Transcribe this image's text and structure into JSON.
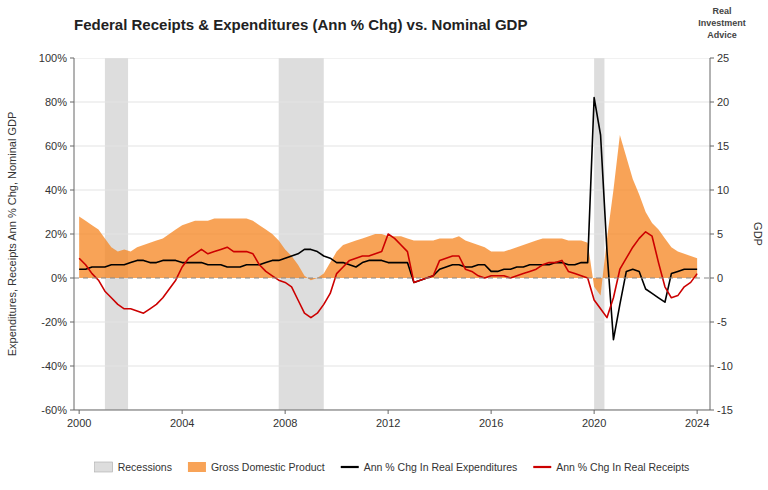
{
  "chart_data": {
    "type": "line",
    "title": "Federal Receipts & Expenditures (Ann % Chg) vs. Nominal GDP",
    "y_label": "Expenditures, Receipts Ann % Chg, Nominal GDP",
    "y2_label": "GDP",
    "annotation": "Real\nInvestment\nAdvice",
    "xlim": [
      1999.8,
      2024.5
    ],
    "xticks": [
      2000,
      2004,
      2008,
      2012,
      2016,
      2020,
      2024
    ],
    "ylim": [
      -0.6,
      1.0
    ],
    "yticks": [
      {
        "value": -0.6,
        "label": "-60%"
      },
      {
        "value": -0.4,
        "label": "-40%"
      },
      {
        "value": -0.2,
        "label": "-20%"
      },
      {
        "value": 0.0,
        "label": "0%"
      },
      {
        "value": 0.2,
        "label": "20%"
      },
      {
        "value": 0.4,
        "label": "40%"
      },
      {
        "value": 0.6,
        "label": "60%"
      },
      {
        "value": 0.8,
        "label": "80%"
      },
      {
        "value": 1.0,
        "label": "100%"
      }
    ],
    "y2lim": [
      -15,
      25
    ],
    "y2ticks": [
      -15,
      -10,
      -5,
      0,
      5,
      10,
      15,
      20,
      25
    ],
    "grid": true,
    "legend": "bottom",
    "recessions": {
      "name": "Recessions",
      "color": "#DDDDDD",
      "periods": [
        [
          2001.0,
          2001.9
        ],
        [
          2007.75,
          2009.5
        ],
        [
          2020.0,
          2020.4
        ]
      ]
    },
    "x": [
      2000.0,
      2000.25,
      2000.5,
      2000.75,
      2001.0,
      2001.25,
      2001.5,
      2001.75,
      2002.0,
      2002.25,
      2002.5,
      2002.75,
      2003.0,
      2003.25,
      2003.5,
      2003.75,
      2004.0,
      2004.25,
      2004.5,
      2004.75,
      2005.0,
      2005.25,
      2005.5,
      2005.75,
      2006.0,
      2006.25,
      2006.5,
      2006.75,
      2007.0,
      2007.25,
      2007.5,
      2007.75,
      2008.0,
      2008.25,
      2008.5,
      2008.75,
      2009.0,
      2009.25,
      2009.5,
      2009.75,
      2010.0,
      2010.25,
      2010.5,
      2010.75,
      2011.0,
      2011.25,
      2011.5,
      2011.75,
      2012.0,
      2012.25,
      2012.5,
      2012.75,
      2013.0,
      2013.25,
      2013.5,
      2013.75,
      2014.0,
      2014.25,
      2014.5,
      2014.75,
      2015.0,
      2015.25,
      2015.5,
      2015.75,
      2016.0,
      2016.25,
      2016.5,
      2016.75,
      2017.0,
      2017.25,
      2017.5,
      2017.75,
      2018.0,
      2018.25,
      2018.5,
      2018.75,
      2019.0,
      2019.25,
      2019.5,
      2019.75,
      2020.0,
      2020.25,
      2020.5,
      2020.75,
      2021.0,
      2021.25,
      2021.5,
      2021.75,
      2022.0,
      2022.25,
      2022.5,
      2022.75,
      2023.0,
      2023.25,
      2023.5,
      2023.75,
      2024.0
    ],
    "series": [
      {
        "name": "Gross Domestic Product",
        "type": "area",
        "color": "#F5841F",
        "values": [
          0.28,
          0.26,
          0.24,
          0.22,
          0.18,
          0.14,
          0.12,
          0.13,
          0.12,
          0.14,
          0.15,
          0.16,
          0.17,
          0.18,
          0.2,
          0.22,
          0.24,
          0.25,
          0.26,
          0.26,
          0.26,
          0.27,
          0.27,
          0.27,
          0.27,
          0.27,
          0.27,
          0.26,
          0.24,
          0.22,
          0.2,
          0.17,
          0.13,
          0.1,
          0.06,
          0.01,
          -0.01,
          0.0,
          0.02,
          0.07,
          0.12,
          0.15,
          0.16,
          0.17,
          0.18,
          0.19,
          0.2,
          0.2,
          0.19,
          0.19,
          0.19,
          0.18,
          0.17,
          0.17,
          0.17,
          0.17,
          0.18,
          0.18,
          0.18,
          0.19,
          0.17,
          0.16,
          0.15,
          0.14,
          0.12,
          0.12,
          0.12,
          0.13,
          0.14,
          0.15,
          0.16,
          0.17,
          0.18,
          0.18,
          0.18,
          0.18,
          0.17,
          0.17,
          0.17,
          0.16,
          -0.04,
          -0.08,
          0.18,
          0.4,
          0.65,
          0.55,
          0.45,
          0.38,
          0.3,
          0.25,
          0.22,
          0.18,
          0.14,
          0.12,
          0.11,
          0.1,
          0.09
        ]
      },
      {
        "name": "Ann % Chg In Real Expenditures",
        "type": "line",
        "color": "#000000",
        "values": [
          0.04,
          0.04,
          0.05,
          0.05,
          0.05,
          0.06,
          0.06,
          0.06,
          0.07,
          0.08,
          0.08,
          0.07,
          0.07,
          0.08,
          0.08,
          0.08,
          0.07,
          0.07,
          0.07,
          0.07,
          0.06,
          0.06,
          0.06,
          0.05,
          0.05,
          0.05,
          0.06,
          0.06,
          0.06,
          0.07,
          0.08,
          0.08,
          0.09,
          0.1,
          0.11,
          0.13,
          0.13,
          0.12,
          0.1,
          0.09,
          0.07,
          0.07,
          0.06,
          0.05,
          0.07,
          0.08,
          0.08,
          0.08,
          0.07,
          0.07,
          0.07,
          0.07,
          -0.02,
          -0.01,
          0.0,
          0.01,
          0.04,
          0.05,
          0.06,
          0.06,
          0.05,
          0.05,
          0.06,
          0.06,
          0.03,
          0.03,
          0.04,
          0.04,
          0.05,
          0.05,
          0.06,
          0.06,
          0.06,
          0.06,
          0.07,
          0.07,
          0.06,
          0.06,
          0.07,
          0.07,
          0.82,
          0.65,
          0.12,
          -0.28,
          -0.12,
          0.03,
          0.04,
          0.03,
          -0.05,
          -0.07,
          -0.09,
          -0.11,
          0.02,
          0.03,
          0.04,
          0.04,
          0.04
        ]
      },
      {
        "name": "Ann % Chg In Real Receipts",
        "type": "line",
        "color": "#CC0000",
        "values": [
          0.09,
          0.06,
          0.02,
          -0.01,
          -0.06,
          -0.09,
          -0.12,
          -0.14,
          -0.14,
          -0.15,
          -0.16,
          -0.14,
          -0.12,
          -0.09,
          -0.05,
          -0.01,
          0.05,
          0.09,
          0.11,
          0.13,
          0.11,
          0.12,
          0.13,
          0.14,
          0.12,
          0.12,
          0.12,
          0.11,
          0.06,
          0.03,
          0.01,
          -0.01,
          -0.02,
          -0.04,
          -0.1,
          -0.16,
          -0.18,
          -0.16,
          -0.12,
          -0.07,
          0.02,
          0.05,
          0.08,
          0.09,
          0.1,
          0.1,
          0.11,
          0.12,
          0.2,
          0.18,
          0.15,
          0.12,
          -0.02,
          -0.01,
          0.0,
          0.01,
          0.08,
          0.09,
          0.1,
          0.1,
          0.04,
          0.03,
          0.01,
          0.0,
          0.01,
          0.01,
          0.01,
          0.0,
          0.01,
          0.02,
          0.03,
          0.04,
          0.06,
          0.07,
          0.07,
          0.08,
          0.03,
          0.02,
          0.01,
          0.0,
          -0.1,
          -0.14,
          -0.18,
          -0.09,
          0.04,
          0.09,
          0.14,
          0.18,
          0.21,
          0.19,
          0.07,
          -0.04,
          -0.09,
          -0.08,
          -0.04,
          -0.02,
          0.02
        ]
      }
    ]
  }
}
